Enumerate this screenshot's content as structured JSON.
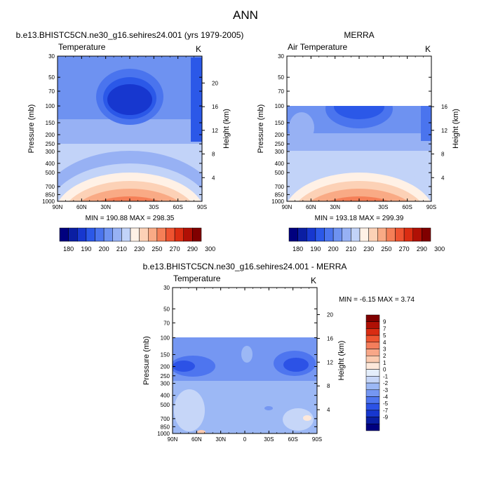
{
  "figure": {
    "title": "ANN"
  },
  "colors": {
    "scale": [
      "#00007f",
      "#0a1ea3",
      "#1737cf",
      "#2b58e8",
      "#4a74ee",
      "#6e92f1",
      "#97b1f4",
      "#c2d3f8",
      "#fff1e6",
      "#fcd1b6",
      "#f9aa85",
      "#f57f57",
      "#ee5330",
      "#db2d12",
      "#b01005",
      "#800000"
    ],
    "diff": [
      "#000080",
      "#0a1ea3",
      "#1737cf",
      "#2c52e6",
      "#4e75ef",
      "#7597f2",
      "#9cb8f5",
      "#c6d6f8",
      "#e4eefb",
      "#fde8da",
      "#fbcbb0",
      "#f8a788",
      "#f47e5c",
      "#ee5531",
      "#d92c12",
      "#b01005",
      "#800000"
    ]
  },
  "chart_data": [
    {
      "type": "heatmap",
      "title": "b.e13.BHISTC5CN.ne30_g16.sehires24.001 (yrs 1979-2005)",
      "variable": "Temperature",
      "units": "K",
      "xlabel": "",
      "ylabel": "Pressure (mb)",
      "ylabel_right": "Height (km)",
      "x_ticks": [
        "90N",
        "60N",
        "30N",
        "0",
        "30S",
        "60S",
        "90S"
      ],
      "y_ticks": [
        30,
        50,
        70,
        100,
        150,
        200,
        250,
        300,
        400,
        500,
        700,
        850,
        1000
      ],
      "height_ticks": [
        20,
        16,
        12,
        8,
        4
      ],
      "y_range": [
        30,
        1000
      ],
      "x_range": [
        90,
        -90
      ],
      "y_scale": "log",
      "stats": "MIN = 190.88  MAX = 298.35",
      "min": 190.88,
      "max": 298.35,
      "data_pressure_range": [
        30,
        1000
      ]
    },
    {
      "type": "heatmap",
      "title": "MERRA",
      "variable": "Air Temperature",
      "units": "K",
      "xlabel": "",
      "ylabel": "Pressure (mb)",
      "ylabel_right": "Height (km)",
      "x_ticks": [
        "90N",
        "60N",
        "30N",
        "0",
        "30S",
        "60S",
        "90S"
      ],
      "y_ticks": [
        30,
        50,
        70,
        100,
        150,
        200,
        250,
        300,
        400,
        500,
        700,
        850,
        1000
      ],
      "height_ticks": [
        16,
        12,
        8,
        4
      ],
      "y_range": [
        30,
        1000
      ],
      "x_range": [
        90,
        -90
      ],
      "y_scale": "log",
      "stats": "MIN = 193.18  MAX = 299.39",
      "min": 193.18,
      "max": 299.39,
      "data_pressure_range": [
        100,
        1000
      ]
    },
    {
      "type": "heatmap",
      "title": "b.e13.BHISTC5CN.ne30_g16.sehires24.001 - MERRA",
      "variable": "Temperature",
      "units": "K",
      "xlabel": "",
      "ylabel": "Pressure (mb)",
      "ylabel_right": "Height (km)",
      "x_ticks": [
        "90N",
        "60N",
        "30N",
        "0",
        "30S",
        "60S",
        "90S"
      ],
      "y_ticks": [
        30,
        50,
        70,
        100,
        150,
        200,
        250,
        300,
        400,
        500,
        700,
        850,
        1000
      ],
      "height_ticks": [
        20,
        16,
        12,
        8,
        4
      ],
      "y_range": [
        30,
        1000
      ],
      "x_range": [
        90,
        -90
      ],
      "y_scale": "log",
      "stats": "MIN = -6.15  MAX =  3.74",
      "min": -6.15,
      "max": 3.74,
      "data_pressure_range": [
        100,
        1000
      ]
    }
  ],
  "colorbars": {
    "absolute": {
      "labels": [
        "180",
        "190",
        "200",
        "210",
        "230",
        "250",
        "270",
        "290",
        "300"
      ]
    },
    "difference": {
      "labels": [
        "9",
        "7",
        "5",
        "4",
        "3",
        "2",
        "1",
        "0",
        "-1",
        "-2",
        "-3",
        "-4",
        "-5",
        "-7",
        "-9"
      ]
    }
  }
}
